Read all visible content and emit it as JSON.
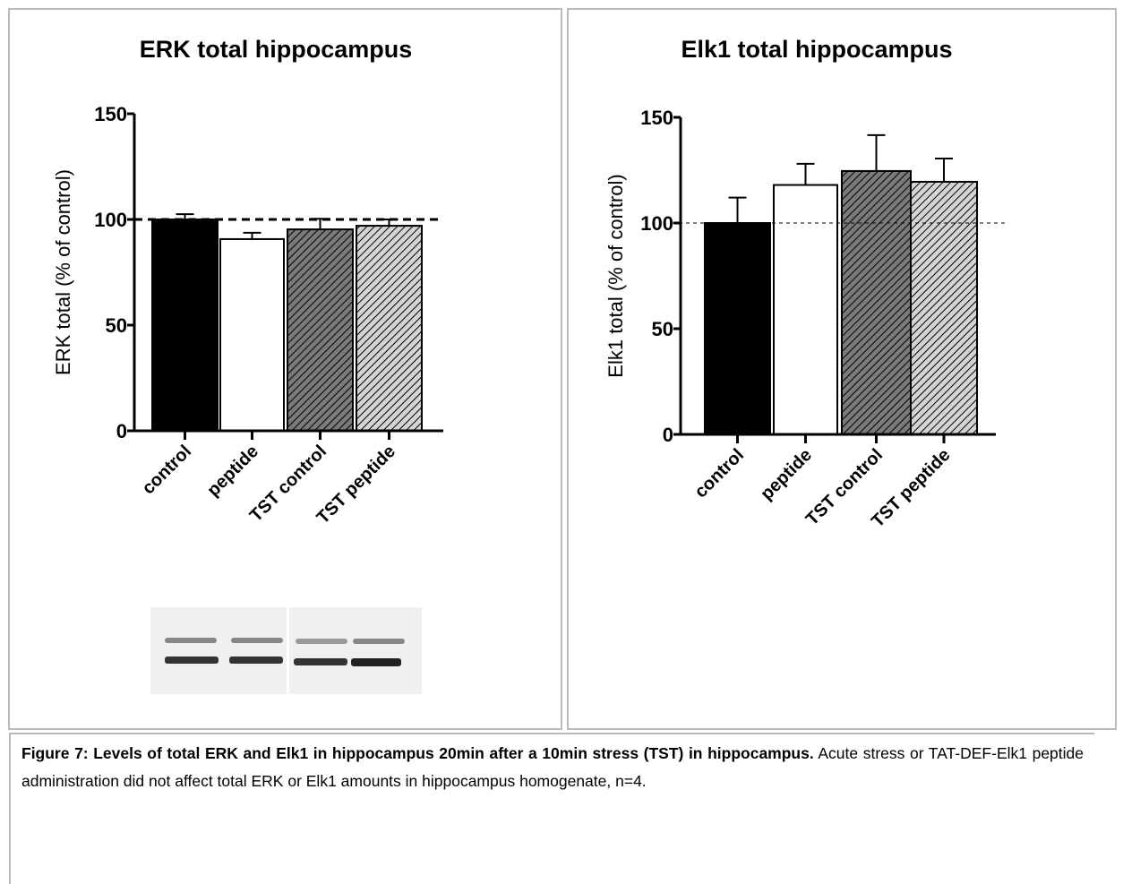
{
  "chart_data": [
    {
      "type": "bar",
      "title": "ERK total hippocampus",
      "ylabel": "ERK total (% of control)",
      "categories": [
        "control",
        "peptide",
        "TST control",
        "TST peptide"
      ],
      "values": [
        100,
        90.7,
        95.3,
        97
      ],
      "errors": [
        2.5,
        3,
        5,
        3
      ],
      "colors": [
        "#000000",
        "#ffffff",
        "#7a7a7a",
        "#d4d4d4"
      ],
      "hatch": [
        false,
        false,
        true,
        true
      ],
      "ylim": [
        0,
        150
      ],
      "yticks": [
        0,
        50,
        100,
        150
      ],
      "refline": 100
    },
    {
      "type": "bar",
      "title": "Elk1 total hippocampus",
      "ylabel": "Elk1 total (% of control)",
      "categories": [
        "control",
        "peptide",
        "TST control",
        "TST peptide"
      ],
      "values": [
        100,
        118,
        124.6,
        119.5
      ],
      "errors": [
        12,
        10,
        17,
        11
      ],
      "colors": [
        "#000000",
        "#ffffff",
        "#7a7a7a",
        "#d4d4d4"
      ],
      "hatch": [
        false,
        false,
        true,
        true
      ],
      "ylim": [
        0,
        150
      ],
      "yticks": [
        0,
        50,
        100,
        150
      ],
      "refline": 100
    }
  ],
  "caption": {
    "bold": "Figure 7: Levels of total ERK and Elk1 in hippocampus 20min after a 10min stress (TST) in hippocampus.",
    "text": "Acute stress or TAT-DEF-Elk1 peptide administration did not affect total ERK or Elk1 amounts in hippocampus homogenate, n=4."
  }
}
